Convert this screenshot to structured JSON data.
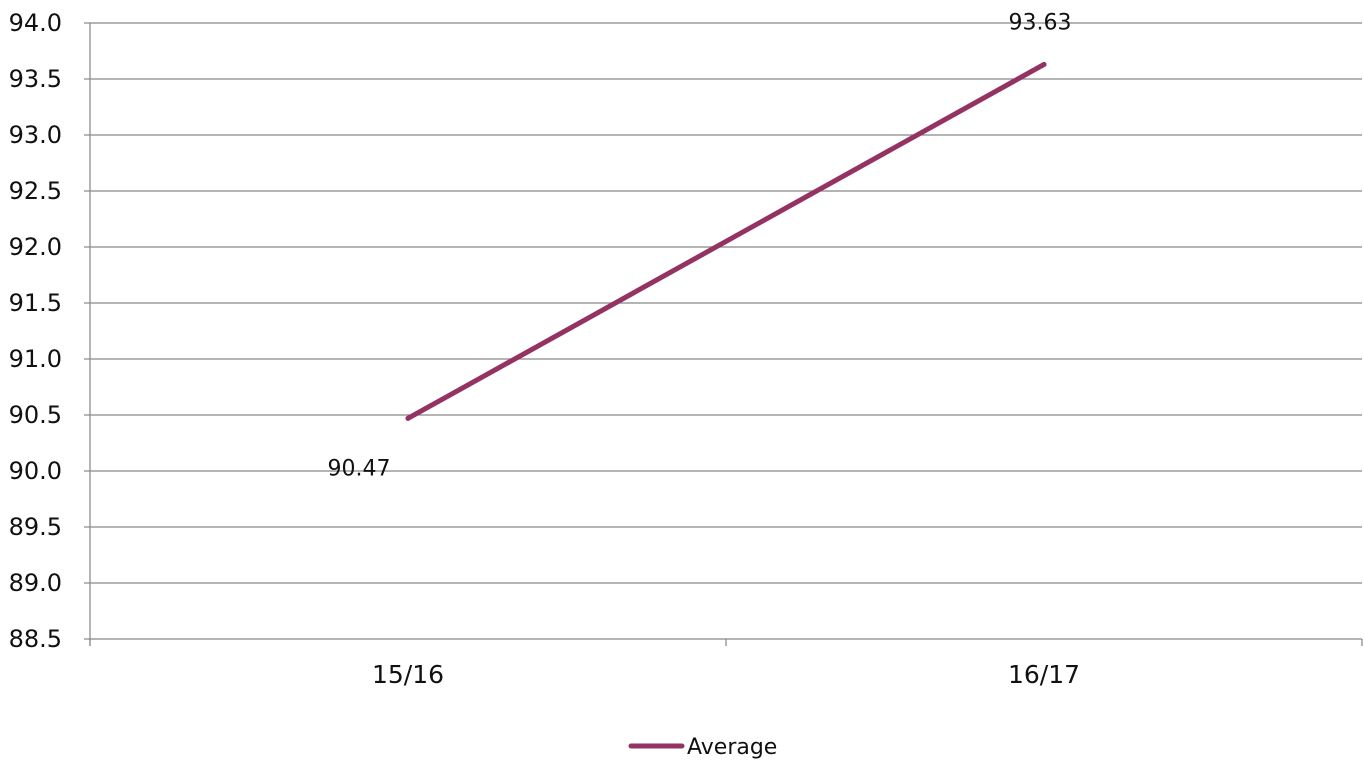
{
  "chart_data": {
    "type": "line",
    "title": "",
    "xlabel": "",
    "ylabel": "",
    "categories": [
      "15/16",
      "16/17"
    ],
    "series": [
      {
        "name": "Average",
        "values": [
          90.47,
          93.63
        ],
        "data_labels": [
          "90.47",
          "93.63"
        ],
        "color": "#943363"
      }
    ],
    "ylim": [
      88.5,
      94.0
    ],
    "yticks": [
      "88.5",
      "89.0",
      "89.5",
      "90.0",
      "90.5",
      "91.0",
      "91.5",
      "92.0",
      "92.5",
      "93.0",
      "93.5",
      "94.0"
    ],
    "grid": true,
    "legend": "bottom-center"
  }
}
